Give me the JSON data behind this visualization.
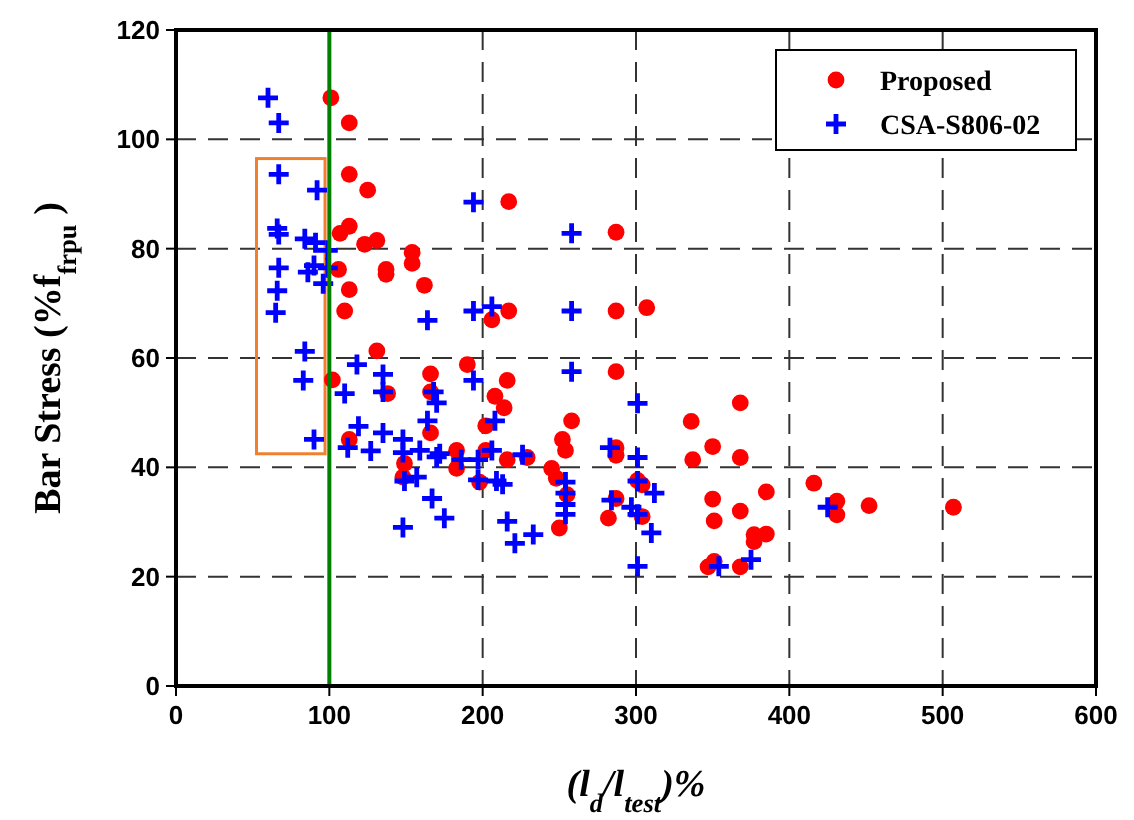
{
  "chart_data": {
    "type": "scatter",
    "xlabel": "(l$_{d}$/l$_{test}$)%",
    "ylabel": "Bar Stress (%f$_{frpu}$ )",
    "xlim": [
      0,
      600
    ],
    "xticks": [
      0,
      100,
      200,
      300,
      400,
      500,
      600
    ],
    "ylim": [
      0,
      120
    ],
    "yticks": [
      0,
      20,
      40,
      60,
      80,
      100,
      120
    ],
    "grid": true,
    "legend": "top right",
    "ref_lines": [
      {
        "axis": "x",
        "value": 100,
        "color": "#008000",
        "line_style": "solid"
      }
    ],
    "series": [
      {
        "name": "Proposed",
        "color": "#ff0000",
        "marker": "circle",
        "x": [
          101,
          113,
          113,
          125,
          217,
          287,
          113,
          107,
          123,
          131,
          154,
          154,
          137,
          137,
          106,
          162,
          113,
          110,
          217,
          206,
          287,
          307,
          131,
          102,
          166,
          190,
          216,
          287,
          138,
          166,
          208,
          214,
          368,
          258,
          336,
          202,
          166,
          113,
          252,
          350,
          183,
          254,
          287,
          287,
          202,
          216,
          229,
          337,
          368,
          149,
          183,
          245,
          248,
          148,
          198,
          416,
          301,
          304,
          255,
          385,
          350,
          287,
          431,
          452,
          507,
          368,
          431,
          282,
          304,
          351,
          250,
          385,
          377,
          377,
          351,
          347,
          368
        ],
        "values": [
          107.6,
          103,
          93.6,
          90.7,
          88.6,
          83,
          84.1,
          82.8,
          80.8,
          81.5,
          79.3,
          77.3,
          76.2,
          75.3,
          76.2,
          73.3,
          72.5,
          68.6,
          68.6,
          67,
          68.6,
          69.2,
          61.3,
          56,
          57.1,
          58.8,
          55.9,
          57.5,
          53.5,
          53.8,
          53,
          50.9,
          51.8,
          48.5,
          48.4,
          47.6,
          46.3,
          45.1,
          45.1,
          43.8,
          43.1,
          43.1,
          43.6,
          42.2,
          43.1,
          41.4,
          41.8,
          41.4,
          41.8,
          40.7,
          39.8,
          39.8,
          38,
          38.2,
          37.3,
          37.1,
          37.6,
          36.8,
          35,
          35.5,
          34.2,
          34.3,
          33.8,
          33,
          32.7,
          32,
          31.3,
          30.7,
          31,
          30.2,
          28.9,
          27.8,
          27.7,
          26.4,
          22.8,
          21.8,
          21.8
        ]
      },
      {
        "name": "CSA-S806-02",
        "color": "#0000ff",
        "marker": "cross",
        "x": [
          60,
          67,
          67,
          92,
          194,
          258,
          66,
          67,
          84,
          91,
          99,
          67,
          86,
          90,
          99,
          96,
          66,
          65,
          164,
          194,
          206,
          258,
          84,
          83,
          118,
          194,
          258,
          110,
          135,
          135,
          168,
          170,
          301,
          164,
          208,
          90,
          119,
          135,
          148,
          112,
          127,
          148,
          159,
          172,
          186,
          197,
          206,
          226,
          283,
          301,
          149,
          157,
          170,
          197,
          209,
          213,
          254,
          301,
          312,
          254,
          284,
          254,
          425,
          297,
          301,
          254,
          167,
          175,
          216,
          310,
          233,
          221,
          148,
          301,
          354,
          375
        ],
        "values": [
          107.6,
          103,
          93.6,
          90.7,
          88.5,
          82.8,
          83.7,
          82.6,
          81.8,
          81.1,
          79.7,
          76.5,
          75.7,
          76.9,
          76.5,
          73.6,
          72.3,
          68.3,
          66.9,
          68.6,
          69.4,
          68.6,
          61.2,
          55.9,
          58.8,
          55.9,
          57.5,
          53.5,
          57,
          53.8,
          53.8,
          51.8,
          51.7,
          48.5,
          48.5,
          45.1,
          47.5,
          46.3,
          45.1,
          43.6,
          43,
          42.7,
          43.1,
          42.5,
          41.4,
          41.4,
          43.1,
          42.3,
          43.6,
          41.8,
          37.5,
          38.2,
          41.9,
          37.7,
          37.5,
          36.9,
          37.3,
          37.5,
          35.3,
          35.3,
          34,
          33.2,
          32.7,
          32.7,
          31.4,
          31.4,
          34.3,
          30.7,
          30.1,
          28,
          27.7,
          26.1,
          29,
          21.9,
          21.9,
          23.1
        ]
      }
    ]
  }
}
